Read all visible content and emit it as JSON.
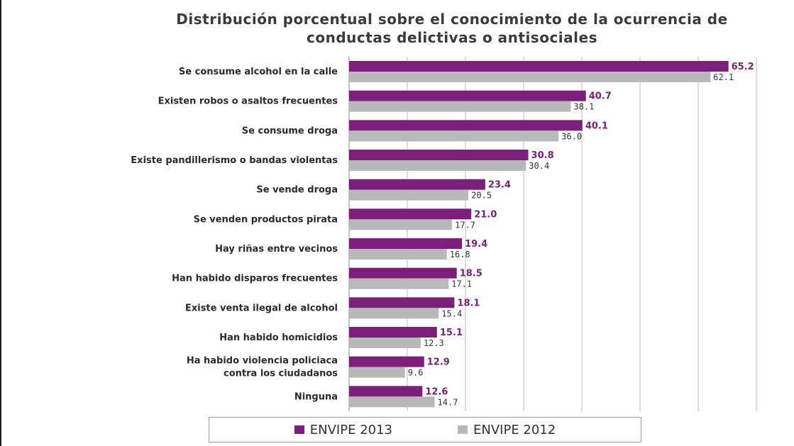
{
  "chart_data": {
    "type": "bar",
    "orientation": "horizontal",
    "title": "Distribución porcentual sobre el conocimiento de la ocurrencia de conductas delictivas o antisociales",
    "title_lines": [
      "Distribución porcentual sobre el conocimiento de la ocurrencia de",
      "conductas delictivas o antisociales"
    ],
    "categories": [
      [
        "Se consume alcohol en la calle"
      ],
      [
        "Existen robos o asaltos frecuentes"
      ],
      [
        "Se consume droga"
      ],
      [
        "Existe pandillerismo o bandas violentas"
      ],
      [
        "Se vende droga"
      ],
      [
        "Se venden productos pirata"
      ],
      [
        "Hay riñas entre vecinos"
      ],
      [
        "Han habido disparos frecuentes"
      ],
      [
        "Existe venta ilegal de alcohol"
      ],
      [
        "Han habido homicidios"
      ],
      [
        "Ha habido violencia policiaca",
        "contra los ciudadanos"
      ],
      [
        "Ninguna"
      ]
    ],
    "series": [
      {
        "name": "ENVIPE 2013",
        "color": "#7b1f7a",
        "values": [
          65.2,
          40.7,
          40.1,
          30.8,
          23.4,
          21.0,
          19.4,
          18.5,
          18.1,
          15.1,
          12.9,
          12.6
        ],
        "labels": [
          "65.2",
          "40.7",
          "40.1",
          "30.8",
          "23.4",
          "21.0",
          "19.4",
          "18.5",
          "18.1",
          "15.1",
          "12.9",
          "12.6"
        ]
      },
      {
        "name": "ENVIPE 2012",
        "color": "#b9b9b9",
        "values": [
          62.1,
          38.1,
          36.0,
          30.4,
          20.5,
          17.7,
          16.8,
          17.1,
          15.4,
          12.3,
          9.6,
          14.7
        ],
        "labels": [
          "62.1",
          "38.1",
          "36.0",
          "30.4",
          "20.5",
          "17.7",
          "16.8",
          "17.1",
          "15.4",
          "12.3",
          "9.6",
          "14.7"
        ]
      }
    ],
    "xlim": [
      0,
      70
    ],
    "gridlines_at": [
      0,
      10,
      20,
      30,
      40,
      50,
      60,
      70
    ],
    "grid": true,
    "legend_position": "bottom"
  }
}
